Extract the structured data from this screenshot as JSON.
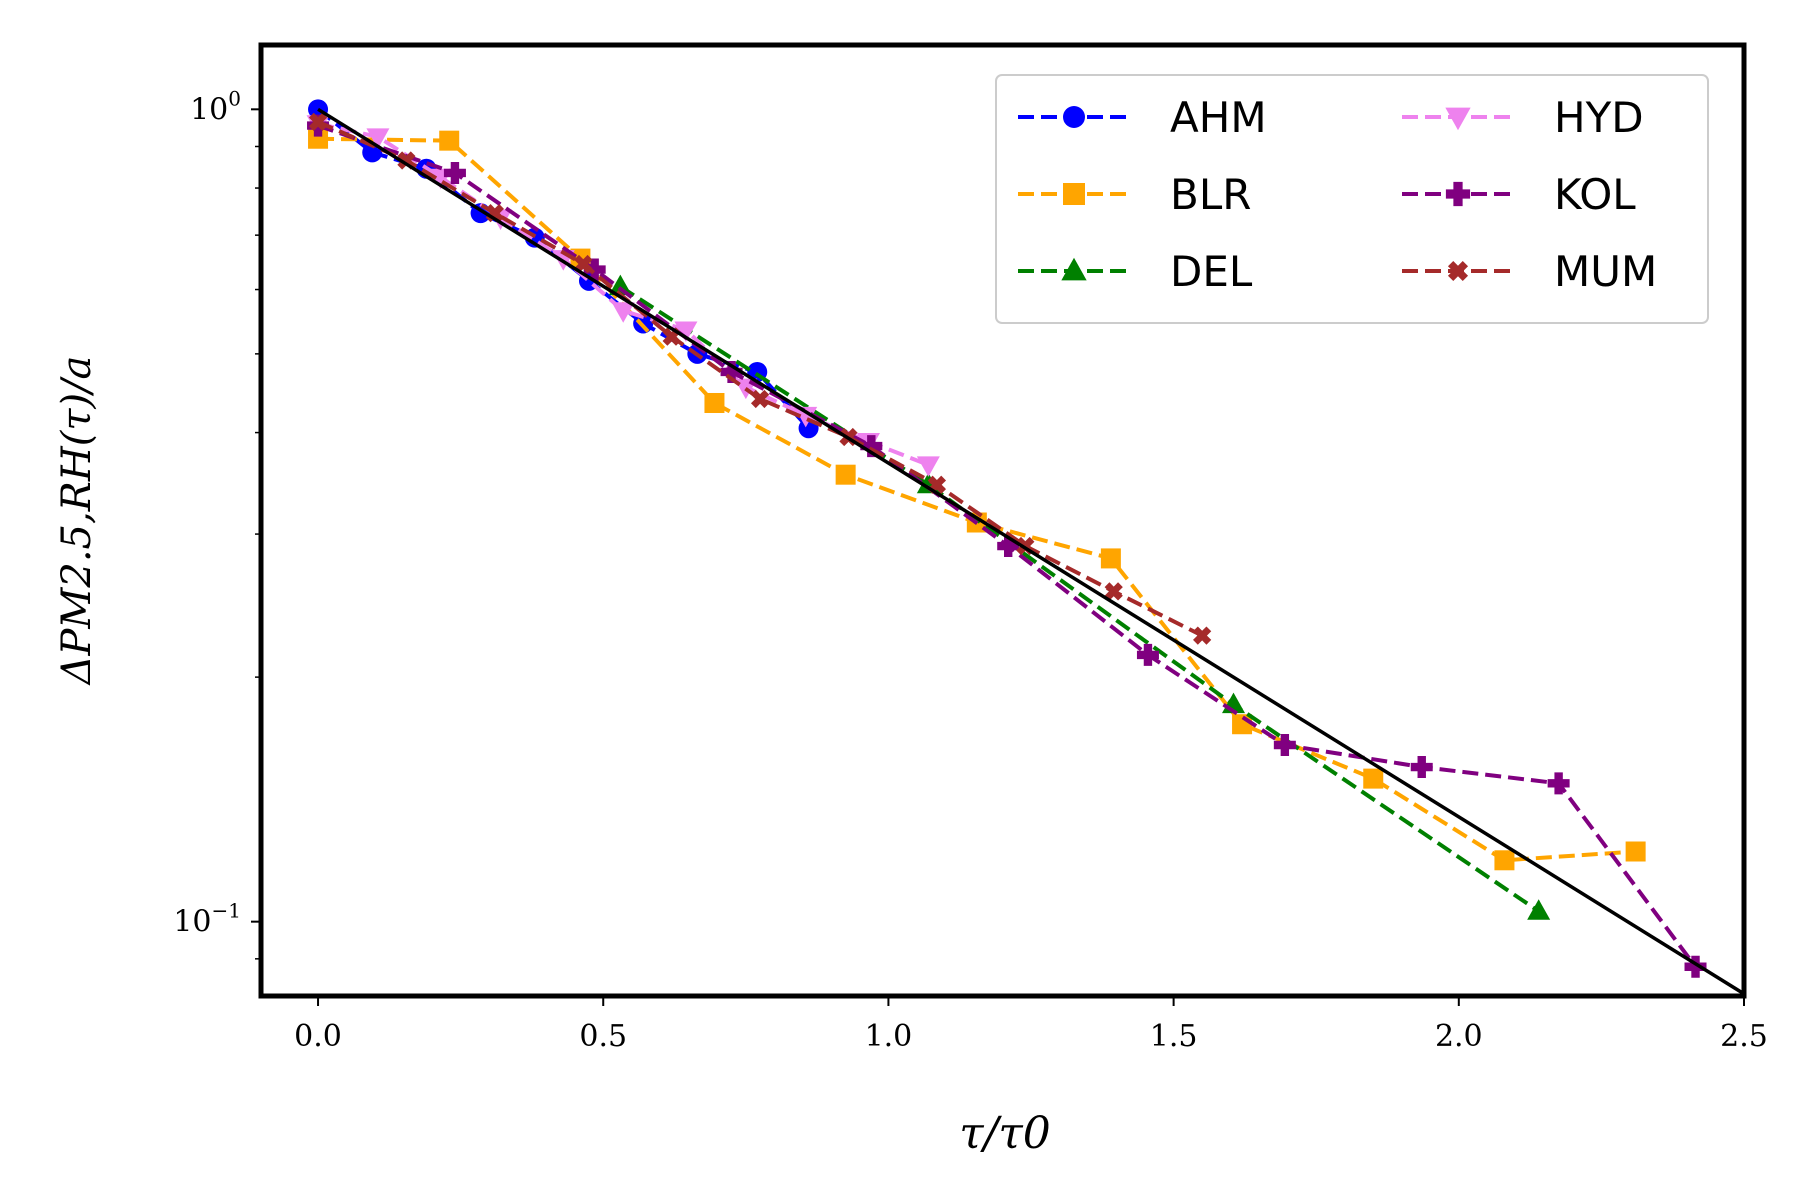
{
  "chart_data": {
    "type": "line",
    "yscale": "log",
    "xlim": [
      -0.1,
      2.5
    ],
    "ylim": [
      0.081,
      1.2
    ],
    "xlabel": "τ/τ0",
    "ylabel": "ΔPM2.5,RH(τ)/a",
    "xticks": [
      {
        "value": 0.0,
        "label": "0.0"
      },
      {
        "value": 0.5,
        "label": "0.5"
      },
      {
        "value": 1.0,
        "label": "1.0"
      },
      {
        "value": 1.5,
        "label": "1.5"
      },
      {
        "value": 2.0,
        "label": "2.0"
      },
      {
        "value": 2.5,
        "label": "2.5"
      }
    ],
    "yticks": [
      {
        "value": 1.0,
        "base": "10",
        "exp": "0"
      },
      {
        "value": 0.1,
        "base": "10",
        "exp": "−1"
      }
    ],
    "legend_position": "top-right",
    "series": [
      {
        "name": "AHM",
        "color": "#0000ff",
        "marker": "circle",
        "x": [
          0.0,
          0.095,
          0.19,
          0.285,
          0.38,
          0.475,
          0.57,
          0.665,
          0.77,
          0.86
        ],
        "y": [
          1.0,
          0.885,
          0.845,
          0.745,
          0.695,
          0.615,
          0.545,
          0.5,
          0.475,
          0.405
        ]
      },
      {
        "name": "BLR",
        "color": "#ffa500",
        "marker": "square",
        "x": [
          0.0,
          0.23,
          0.46,
          0.695,
          0.925,
          1.155,
          1.39,
          1.62,
          1.85,
          2.08,
          2.31
        ],
        "y": [
          0.92,
          0.915,
          0.655,
          0.435,
          0.355,
          0.31,
          0.28,
          0.175,
          0.15,
          0.119,
          0.122
        ]
      },
      {
        "name": "DEL",
        "color": "#008000",
        "marker": "triangle-up",
        "x": [
          0.53,
          1.07,
          1.605,
          2.14
        ],
        "y": [
          0.605,
          0.345,
          0.185,
          0.103
        ]
      },
      {
        "name": "HYD",
        "color": "#ee82ee",
        "marker": "triangle-down",
        "x": [
          0.0,
          0.105,
          0.215,
          0.32,
          0.43,
          0.535,
          0.645,
          0.75,
          0.855,
          0.965,
          1.07
        ],
        "y": [
          0.96,
          0.925,
          0.825,
          0.735,
          0.655,
          0.565,
          0.535,
          0.455,
          0.42,
          0.39,
          0.365
        ]
      },
      {
        "name": "KOL",
        "color": "#800080",
        "marker": "plus",
        "x": [
          0.0,
          0.24,
          0.485,
          0.725,
          0.97,
          1.21,
          1.455,
          1.695,
          1.935,
          2.175,
          2.415
        ],
        "y": [
          0.955,
          0.835,
          0.635,
          0.475,
          0.385,
          0.29,
          0.213,
          0.165,
          0.155,
          0.148,
          0.088
        ]
      },
      {
        "name": "MUM",
        "color": "#a52a2a",
        "marker": "x",
        "x": [
          0.0,
          0.155,
          0.31,
          0.465,
          0.62,
          0.775,
          0.93,
          1.085,
          1.24,
          1.395,
          1.55
        ],
        "y": [
          0.965,
          0.865,
          0.745,
          0.645,
          0.525,
          0.44,
          0.395,
          0.345,
          0.29,
          0.255,
          0.225
        ]
      }
    ],
    "fit_line": {
      "color": "#000000",
      "x": [
        0.0,
        2.5
      ],
      "y": [
        1.0,
        0.0815
      ]
    }
  }
}
